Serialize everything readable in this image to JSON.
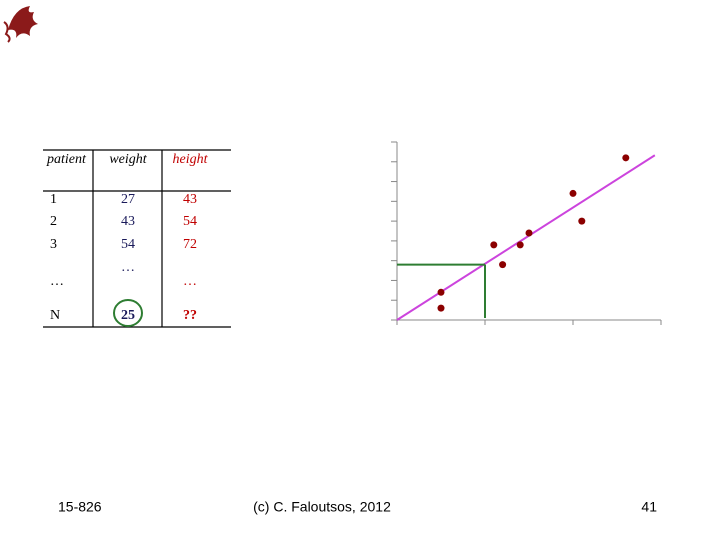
{
  "table": {
    "header": [
      "patient",
      "weight",
      "height"
    ],
    "rows": [
      [
        "1",
        "27",
        "43"
      ],
      [
        "2",
        "43",
        "54"
      ],
      [
        "3",
        "54",
        "72"
      ],
      [
        "…",
        "…",
        "…"
      ],
      [
        "N",
        "25",
        "??"
      ]
    ]
  },
  "chart_data": {
    "type": "scatter",
    "x": [
      0.5,
      0.5,
      1.1,
      1.2,
      1.4,
      1.5,
      2.0,
      2.1,
      2.6
    ],
    "values": [
      1.4,
      0.6,
      3.8,
      2.8,
      3.8,
      4.4,
      6.4,
      5.0,
      8.2
    ],
    "color": "#8b0000",
    "fit_line": {
      "x": [
        0,
        2.93
      ],
      "y": [
        0,
        8.33
      ],
      "color": "#cc44dd"
    },
    "lookup": {
      "x": 1.0,
      "y": 2.8,
      "color": "#2e7d32"
    },
    "xlim": [
      0,
      3
    ],
    "ylim": [
      0,
      9
    ],
    "xticks": [
      0,
      1,
      2,
      3
    ],
    "yticks": [
      0,
      1,
      2,
      3,
      4,
      5,
      6,
      7,
      8,
      9
    ]
  },
  "footer": {
    "left": "15-826",
    "center": "(c) C. Faloutsos, 2012",
    "page": "41"
  }
}
